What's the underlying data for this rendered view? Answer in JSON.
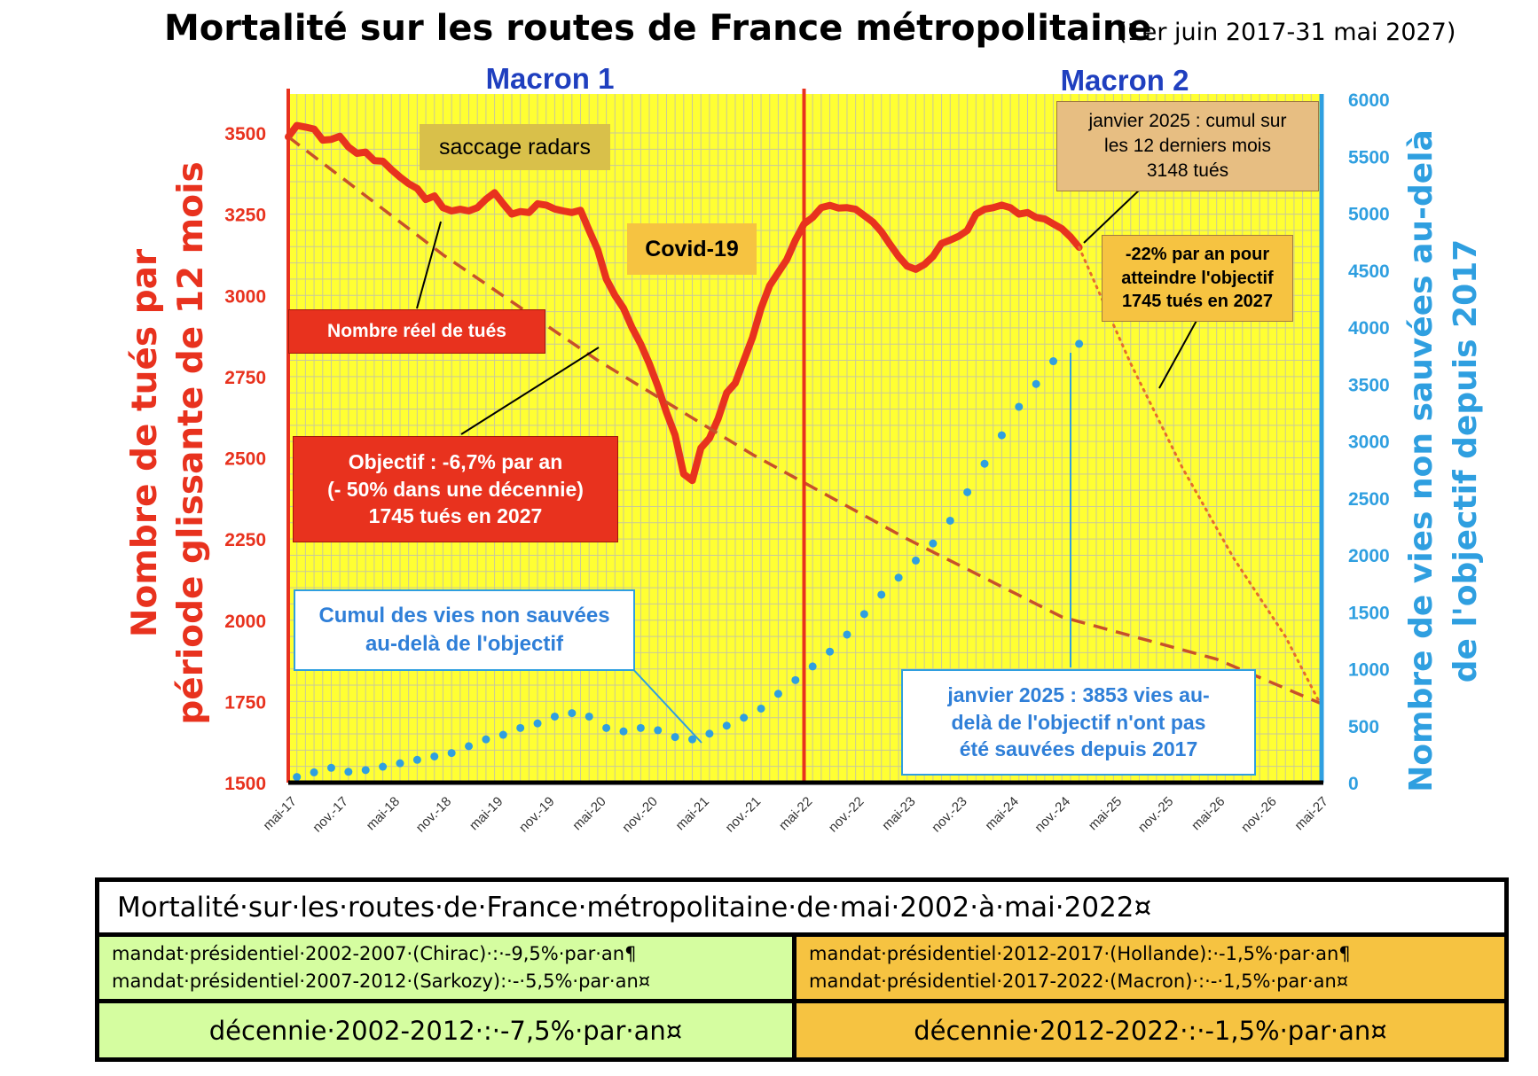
{
  "chart_data": {
    "type": "line",
    "title": "Mortalité sur les routes de France métropolitaine",
    "subtitle": "(1er juin 2017-31 mai 2027)",
    "ylabel_left": [
      "Nombre de tués par",
      "période glissante de 12 mois"
    ],
    "ylabel_right": [
      "Nombre de vies non sauvées  au-delà",
      "de l'objectif depuis 2017"
    ],
    "y_left_range": [
      1500,
      3500
    ],
    "y_left_ticks": [
      "1500",
      "1750",
      "2000",
      "2250",
      "2500",
      "2750",
      "3000",
      "3250",
      "3500"
    ],
    "y_right_range": [
      0,
      6000
    ],
    "y_right_ticks": [
      "0",
      "500",
      "1000",
      "1500",
      "2000",
      "2500",
      "3000",
      "3500",
      "4000",
      "4500",
      "5000",
      "5500",
      "6000"
    ],
    "x_range": [
      "2017-05",
      "2027-05"
    ],
    "x_ticks": [
      "mai-17",
      "nov.-17",
      "mai-18",
      "nov.-18",
      "mai-19",
      "nov.-19",
      "mai-20",
      "nov.-20",
      "mai-21",
      "nov.-21",
      "mai-22",
      "nov.-22",
      "mai-23",
      "nov.-23",
      "mai-24",
      "nov.-24",
      "mai-25",
      "nov.-25",
      "mai-26",
      "nov.-26",
      "mai-27"
    ],
    "background": "#ffff33",
    "grid": true,
    "periods": [
      {
        "label": "Macron 1",
        "start": "2017-05",
        "end": "2022-05"
      },
      {
        "label": "Macron 2",
        "start": "2022-05",
        "end": "2027-05"
      }
    ],
    "series": [
      {
        "name": "Nombre réel de tués",
        "axis": "left",
        "color": "#e8321e",
        "style": "solid-thick",
        "points": [
          [
            "2017-05",
            3488
          ],
          [
            "2017-06",
            3523
          ],
          [
            "2017-07",
            3518
          ],
          [
            "2017-08",
            3512
          ],
          [
            "2017-09",
            3478
          ],
          [
            "2017-10",
            3480
          ],
          [
            "2017-11",
            3490
          ],
          [
            "2017-12",
            3457
          ],
          [
            "2018-01",
            3437
          ],
          [
            "2018-02",
            3441
          ],
          [
            "2018-03",
            3415
          ],
          [
            "2018-04",
            3413
          ],
          [
            "2018-05",
            3387
          ],
          [
            "2018-06",
            3364
          ],
          [
            "2018-07",
            3344
          ],
          [
            "2018-08",
            3329
          ],
          [
            "2018-09",
            3295
          ],
          [
            "2018-10",
            3306
          ],
          [
            "2018-11",
            3270
          ],
          [
            "2018-12",
            3260
          ],
          [
            "2019-01",
            3265
          ],
          [
            "2019-02",
            3260
          ],
          [
            "2019-03",
            3270
          ],
          [
            "2019-04",
            3296
          ],
          [
            "2019-05",
            3316
          ],
          [
            "2019-06",
            3282
          ],
          [
            "2019-07",
            3250
          ],
          [
            "2019-08",
            3258
          ],
          [
            "2019-09",
            3255
          ],
          [
            "2019-10",
            3282
          ],
          [
            "2019-11",
            3278
          ],
          [
            "2019-12",
            3266
          ],
          [
            "2020-01",
            3260
          ],
          [
            "2020-02",
            3255
          ],
          [
            "2020-03",
            3262
          ],
          [
            "2020-04",
            3200
          ],
          [
            "2020-05",
            3140
          ],
          [
            "2020-06",
            3050
          ],
          [
            "2020-07",
            3000
          ],
          [
            "2020-08",
            2960
          ],
          [
            "2020-09",
            2900
          ],
          [
            "2020-10",
            2850
          ],
          [
            "2020-11",
            2790
          ],
          [
            "2020-12",
            2720
          ],
          [
            "2021-01",
            2640
          ],
          [
            "2021-02",
            2570
          ],
          [
            "2021-03",
            2450
          ],
          [
            "2021-04",
            2430
          ],
          [
            "2021-05",
            2530
          ],
          [
            "2021-06",
            2560
          ],
          [
            "2021-07",
            2620
          ],
          [
            "2021-08",
            2700
          ],
          [
            "2021-09",
            2730
          ],
          [
            "2021-10",
            2800
          ],
          [
            "2021-11",
            2870
          ],
          [
            "2021-12",
            2960
          ],
          [
            "2022-01",
            3030
          ],
          [
            "2022-02",
            3070
          ],
          [
            "2022-03",
            3110
          ],
          [
            "2022-04",
            3170
          ],
          [
            "2022-05",
            3220
          ],
          [
            "2022-06",
            3240
          ],
          [
            "2022-07",
            3270
          ],
          [
            "2022-08",
            3277
          ],
          [
            "2022-09",
            3269
          ],
          [
            "2022-10",
            3270
          ],
          [
            "2022-11",
            3265
          ],
          [
            "2022-12",
            3246
          ],
          [
            "2023-01",
            3226
          ],
          [
            "2023-02",
            3196
          ],
          [
            "2023-03",
            3157
          ],
          [
            "2023-04",
            3120
          ],
          [
            "2023-05",
            3090
          ],
          [
            "2023-06",
            3080
          ],
          [
            "2023-07",
            3095
          ],
          [
            "2023-08",
            3120
          ],
          [
            "2023-09",
            3160
          ],
          [
            "2023-10",
            3170
          ],
          [
            "2023-11",
            3182
          ],
          [
            "2023-12",
            3200
          ],
          [
            "2024-01",
            3250
          ],
          [
            "2024-02",
            3265
          ],
          [
            "2024-03",
            3270
          ],
          [
            "2024-04",
            3278
          ],
          [
            "2024-05",
            3270
          ],
          [
            "2024-06",
            3250
          ],
          [
            "2024-07",
            3255
          ],
          [
            "2024-08",
            3240
          ],
          [
            "2024-09",
            3235
          ],
          [
            "2024-10",
            3220
          ],
          [
            "2024-11",
            3205
          ],
          [
            "2024-12",
            3180
          ],
          [
            "2025-01",
            3148
          ]
        ]
      },
      {
        "name": "Objectif : -6,7% par an",
        "axis": "left",
        "color": "#c8502a",
        "style": "dashed",
        "points": [
          [
            "2017-05",
            3488
          ],
          [
            "2018-11",
            3125
          ],
          [
            "2020-05",
            2800
          ],
          [
            "2021-11",
            2510
          ],
          [
            "2023-05",
            2250
          ],
          [
            "2024-11",
            2010
          ],
          [
            "2026-05",
            1880
          ],
          [
            "2027-05",
            1745
          ]
        ]
      },
      {
        "name": "-22% par an",
        "axis": "left",
        "color": "#e56b2e",
        "style": "dotted",
        "points": [
          [
            "2025-01",
            3148
          ],
          [
            "2025-07",
            2790
          ],
          [
            "2026-01",
            2470
          ],
          [
            "2026-07",
            2190
          ],
          [
            "2027-01",
            1950
          ],
          [
            "2027-05",
            1745
          ]
        ]
      },
      {
        "name": "Cumul des vies non sauvées au-delà de l'objectif",
        "axis": "right",
        "color": "#2f9fe0",
        "style": "dotted-thick",
        "points": [
          [
            "2017-06",
            50
          ],
          [
            "2017-08",
            90
          ],
          [
            "2017-10",
            130
          ],
          [
            "2017-12",
            95
          ],
          [
            "2018-02",
            110
          ],
          [
            "2018-04",
            140
          ],
          [
            "2018-06",
            170
          ],
          [
            "2018-08",
            200
          ],
          [
            "2018-10",
            230
          ],
          [
            "2018-12",
            260
          ],
          [
            "2019-02",
            320
          ],
          [
            "2019-04",
            380
          ],
          [
            "2019-06",
            420
          ],
          [
            "2019-08",
            480
          ],
          [
            "2019-10",
            520
          ],
          [
            "2019-12",
            580
          ],
          [
            "2020-02",
            610
          ],
          [
            "2020-04",
            580
          ],
          [
            "2020-06",
            480
          ],
          [
            "2020-08",
            450
          ],
          [
            "2020-10",
            480
          ],
          [
            "2020-12",
            460
          ],
          [
            "2021-02",
            400
          ],
          [
            "2021-04",
            380
          ],
          [
            "2021-06",
            430
          ],
          [
            "2021-08",
            500
          ],
          [
            "2021-10",
            570
          ],
          [
            "2021-12",
            650
          ],
          [
            "2022-02",
            780
          ],
          [
            "2022-04",
            900
          ],
          [
            "2022-06",
            1020
          ],
          [
            "2022-08",
            1150
          ],
          [
            "2022-10",
            1300
          ],
          [
            "2022-12",
            1480
          ],
          [
            "2023-02",
            1650
          ],
          [
            "2023-04",
            1800
          ],
          [
            "2023-06",
            1950
          ],
          [
            "2023-08",
            2100
          ],
          [
            "2023-10",
            2300
          ],
          [
            "2023-12",
            2550
          ],
          [
            "2024-02",
            2800
          ],
          [
            "2024-04",
            3050
          ],
          [
            "2024-06",
            3300
          ],
          [
            "2024-08",
            3500
          ],
          [
            "2024-10",
            3700
          ],
          [
            "2025-01",
            3853
          ]
        ]
      }
    ]
  },
  "period_labels": {
    "macron1": "Macron 1",
    "macron2": "Macron 2"
  },
  "annotations": {
    "radars": "saccage radars",
    "covid": "Covid-19",
    "reel": "Nombre réel de tués",
    "objectif": [
      "Objectif : -6,7% par an",
      "(- 50% dans une décennie)",
      "1745 tués en 2027"
    ],
    "cumul": [
      "Cumul des vies non sauvées",
      "au-delà de l'objectif"
    ],
    "janvier_cumul": [
      "janvier 2025 : cumul sur",
      "les 12 derniers mois",
      "3148 tués"
    ],
    "moins22": [
      "-22% par an pour",
      "atteindre l'objectif",
      "1745 tués en 2027"
    ],
    "janvier_vies": [
      "janvier 2025 : 3853 vies au-",
      "delà de l'objectif n'ont pas",
      "été sauvées depuis 2017"
    ]
  },
  "colors": {
    "red": "#e8321e",
    "blue": "#2f9fe0",
    "title_blue": "#1f3fbf",
    "yellow": "#ffff33",
    "green": "#d5fda0",
    "orange": "#f6c341",
    "tan": "#e7be82"
  },
  "table": {
    "title": "Mortalité·sur·les·routes·de·France·métropolitaine·de·mai·2002·à·mai·2022¤",
    "left_lines": [
      "mandat·présidentiel·2002-2007·(Chirac)·:·-9,5%·par·an¶",
      "mandat·présidentiel·2007-2012·(Sarkozy):·-·5,5%·par·an¤"
    ],
    "right_lines": [
      "mandat·présidentiel·2012-2017·(Hollande):·-1,5%·par·an¶",
      "mandat·présidentiel·2017-2022·(Macron)·:·-·1,5%·par·an¤"
    ],
    "left_decade": "décennie·2002-2012·:·-7,5%·par·an¤",
    "right_decade": "décennie·2012-2022·:·-1,5%·par·an¤"
  }
}
